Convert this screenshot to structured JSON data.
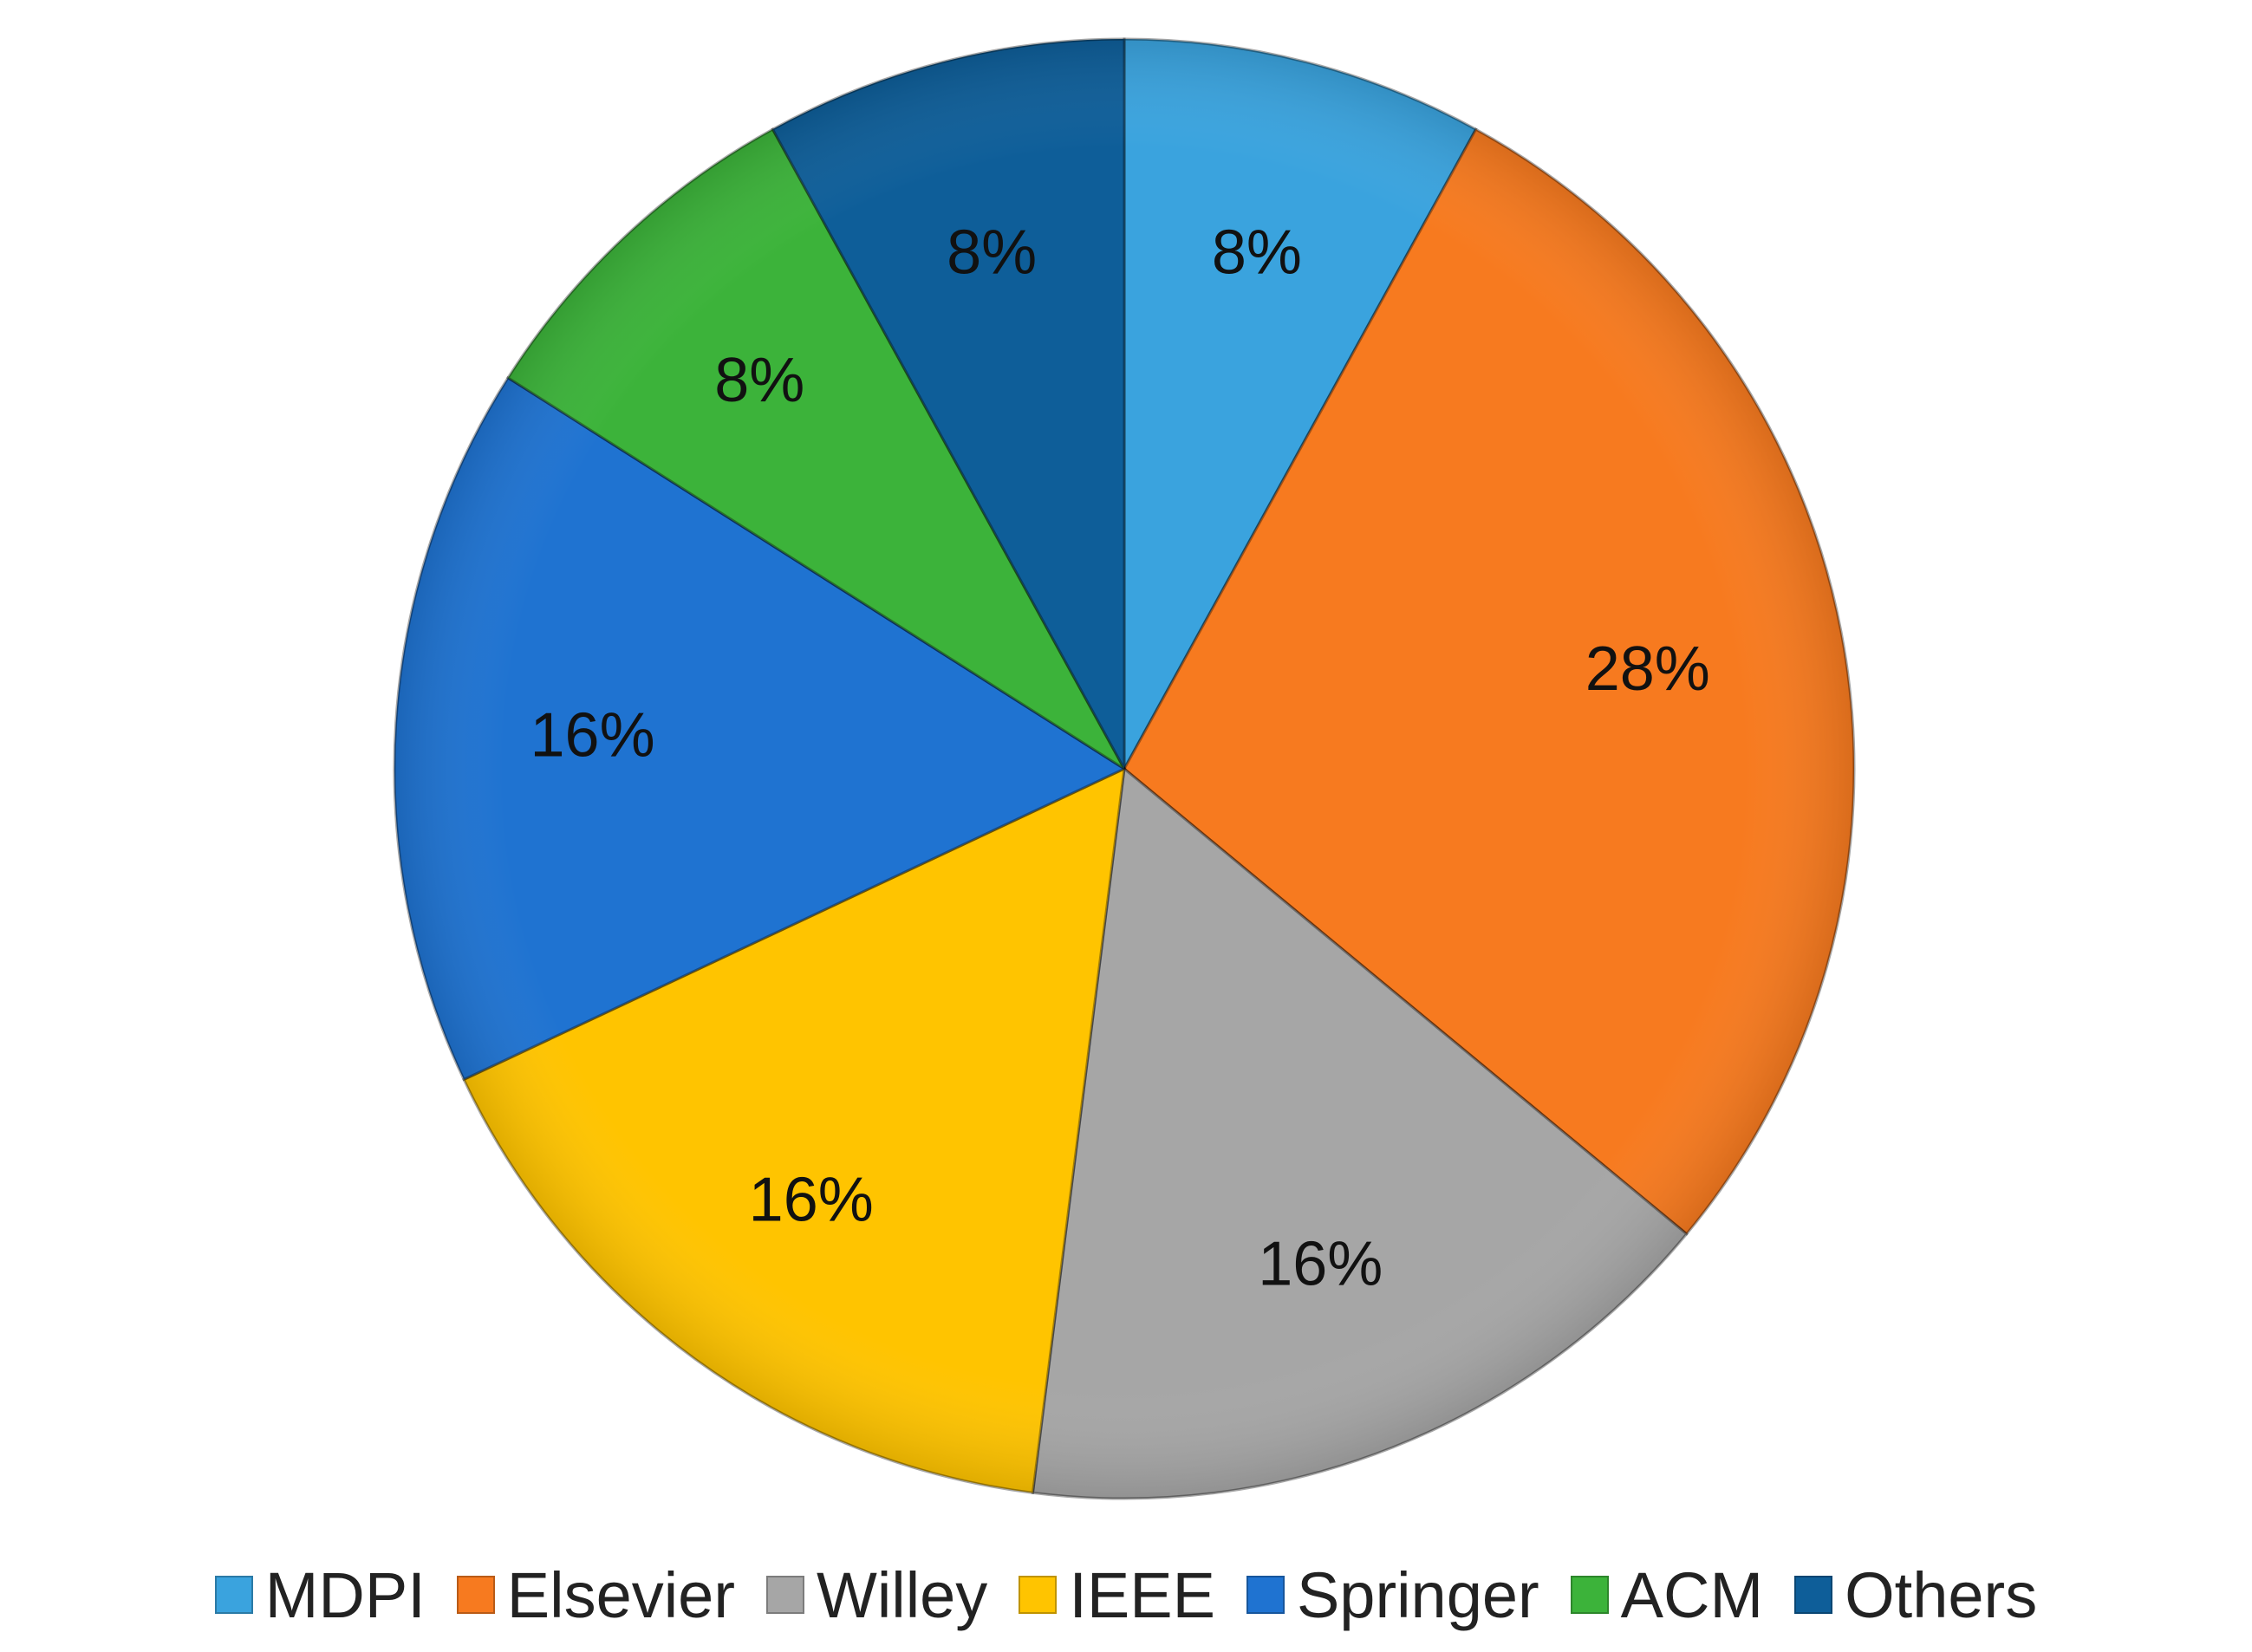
{
  "chart_data": {
    "type": "pie",
    "title": "",
    "legend_position": "bottom",
    "categories": [
      "MDPI",
      "Elsevier",
      "Willey",
      "IEEE",
      "Springer",
      "ACM",
      "Others"
    ],
    "values": [
      8,
      28,
      16,
      16,
      16,
      8,
      8
    ],
    "labels": [
      "8%",
      "28%",
      "16%",
      "16%",
      "16%",
      "8%",
      "8%"
    ],
    "colors": [
      "#3aa3de",
      "#f77a1f",
      "#a6a6a6",
      "#ffc400",
      "#1f73d1",
      "#3cb33a",
      "#0e5e99"
    ],
    "start_angle_deg": 0,
    "direction": "clockwise"
  }
}
